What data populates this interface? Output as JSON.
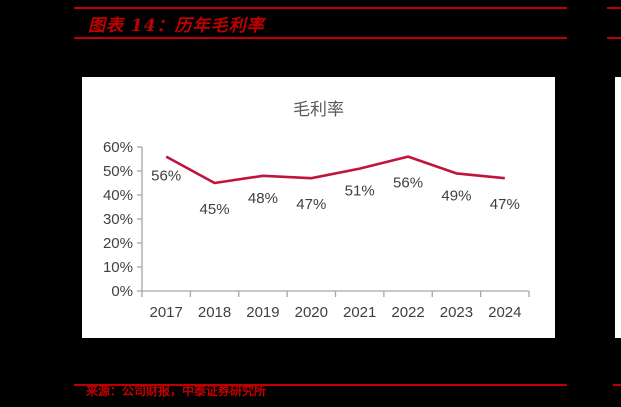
{
  "figure": {
    "title": "图表 14：历年毛利率",
    "source": "来源：公司财报，中泰证券研究所"
  },
  "colors": {
    "accent_red": "#c00000",
    "line": "#c0143c",
    "axis": "#a6a6a6",
    "text": "#404040"
  },
  "chart_data": {
    "type": "line",
    "title": "毛利率",
    "xlabel": "",
    "ylabel": "",
    "categories": [
      "2017",
      "2018",
      "2019",
      "2020",
      "2021",
      "2022",
      "2023",
      "2024"
    ],
    "series": [
      {
        "name": "毛利率",
        "values": [
          56,
          45,
          48,
          47,
          51,
          56,
          49,
          47
        ],
        "labels": [
          "56%",
          "45%",
          "48%",
          "47%",
          "51%",
          "56%",
          "49%",
          "47%"
        ]
      }
    ],
    "ylim": [
      0,
      60
    ],
    "yticks": [
      0,
      10,
      20,
      30,
      40,
      50,
      60
    ],
    "ytick_labels": [
      "0%",
      "10%",
      "20%",
      "30%",
      "40%",
      "50%",
      "60%"
    ],
    "grid": false,
    "legend": "none"
  }
}
